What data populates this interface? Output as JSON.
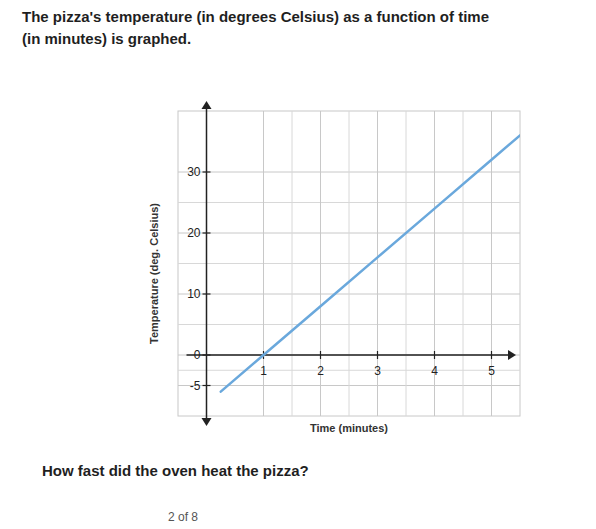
{
  "chart_data": {
    "type": "line",
    "title": "The pizza's temperature (in degrees Celsius) as a function of time (in minutes) is graphed.",
    "x_label": "Time (minutes)",
    "y_label": "Temperature (deg. Celsius)",
    "x": [
      0.25,
      1,
      2,
      3,
      4,
      5,
      5.5
    ],
    "series": [
      {
        "name": "Temperature",
        "color": "#6aa8dc",
        "values": [
          -6,
          0,
          8,
          16,
          24,
          32,
          36
        ]
      }
    ],
    "xlim": [
      -0.5,
      5.5
    ],
    "ylim": [
      -10,
      40
    ],
    "xticks": [
      1,
      2,
      3,
      4,
      5
    ],
    "yticks": [
      -5,
      0,
      10,
      20,
      30
    ],
    "grid": true,
    "annotations": [
      "How fast did the oven heat the pizza?",
      "2 of 8"
    ]
  }
}
